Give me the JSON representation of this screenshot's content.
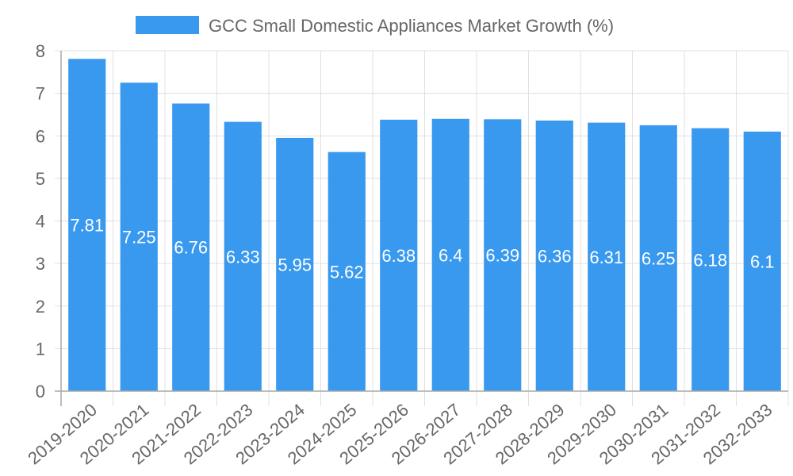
{
  "chart_data": {
    "type": "bar",
    "title": "",
    "legend": {
      "position": "top-center",
      "entries": [
        {
          "label": "GCC Small Domestic Appliances Market Growth (%)",
          "color": "#3899ef"
        }
      ]
    },
    "xlabel": "",
    "ylabel": "",
    "ylim": [
      0,
      8
    ],
    "yticks": [
      "0",
      "1",
      "2",
      "3",
      "4",
      "5",
      "6",
      "7",
      "8"
    ],
    "grid": true,
    "categories": [
      "2019-2020",
      "2020-2021",
      "2021-2022",
      "2022-2023",
      "2023-2024",
      "2024-2025",
      "2025-2026",
      "2026-2027",
      "2027-2028",
      "2028-2029",
      "2029-2030",
      "2030-2031",
      "2031-2032",
      "2032-2033"
    ],
    "series": [
      {
        "name": "GCC Small Domestic Appliances Market Growth (%)",
        "color": "#3899ef",
        "values": [
          7.81,
          7.25,
          6.76,
          6.33,
          5.95,
          5.62,
          6.38,
          6.4,
          6.39,
          6.36,
          6.31,
          6.25,
          6.18,
          6.1
        ],
        "data_labels": [
          "7.81",
          "7.25",
          "6.76",
          "6.33",
          "5.95",
          "5.62",
          "6.38",
          "6.4",
          "6.39",
          "6.36",
          "6.31",
          "6.25",
          "6.18",
          "6.1"
        ]
      }
    ]
  }
}
